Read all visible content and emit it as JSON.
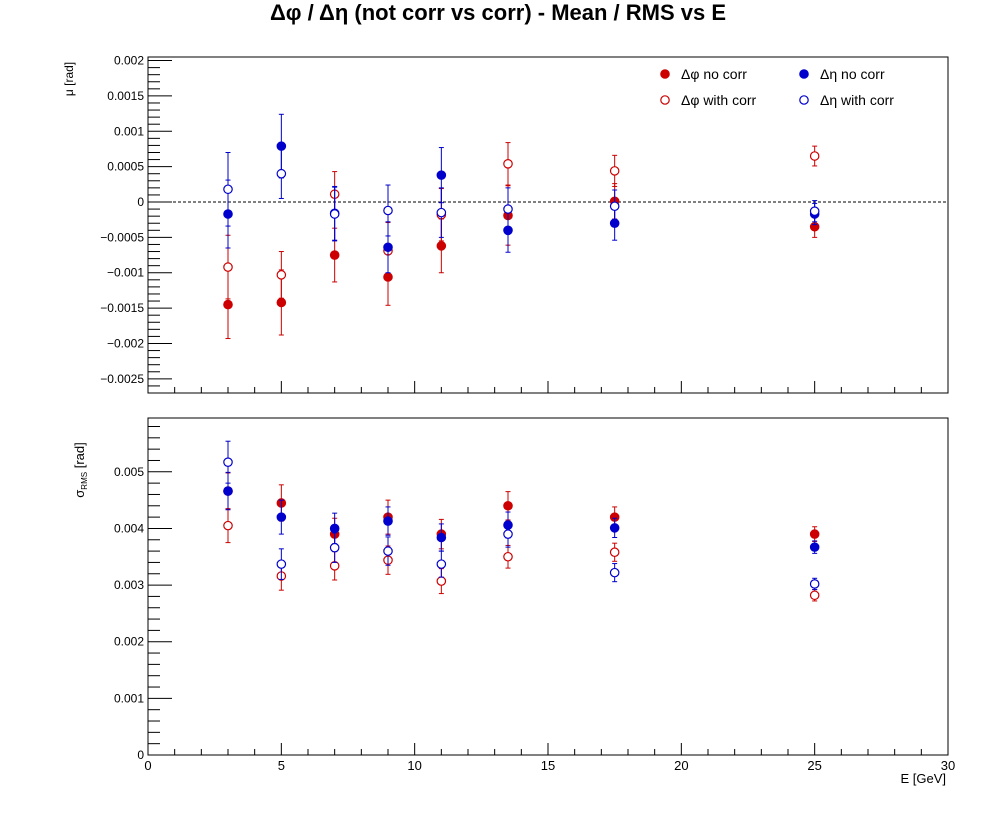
{
  "title": "Δφ / Δη  (not corr vs corr)  -  Mean / RMS vs E",
  "colors": {
    "phi": "#cc0000",
    "eta": "#0000cc",
    "axis": "#000000"
  },
  "legend": {
    "phi_nocorr": "Δφ no corr",
    "eta_nocorr": "Δη no corr",
    "phi_corr": "Δφ with corr",
    "eta_corr": "Δη with corr"
  },
  "chart_data": [
    {
      "type": "scatter",
      "ylabel": "μ  [rad]",
      "ylim": [
        -0.0027,
        0.00205
      ],
      "xlim": [
        0,
        30
      ],
      "yticks": [
        0.002,
        0.0015,
        0.001,
        0.0005,
        0,
        -0.0005,
        -0.001,
        -0.0015,
        -0.002,
        -0.0025
      ],
      "ytick_labels": [
        "0.002",
        "0.0015",
        "0.001",
        "0.0005",
        "0",
        "−0.0005",
        "−0.001",
        "−0.0015",
        "−0.002",
        "−0.0025"
      ],
      "legend_position": "top-right",
      "reference_line": 0,
      "series": [
        {
          "name": "Δφ no corr",
          "style": "filled",
          "color": "#cc0000",
          "x": [
            3,
            5,
            7,
            9,
            11,
            13.5,
            17.5,
            25
          ],
          "y": [
            -0.00145,
            -0.00142,
            -0.00075,
            -0.00106,
            -0.00062,
            -0.00019,
            1e-05,
            -0.00035
          ],
          "err": [
            0.00048,
            0.00046,
            0.00038,
            0.0004,
            0.00038,
            0.00042,
            0.00025,
            0.00015
          ]
        },
        {
          "name": "Δφ with corr",
          "style": "open",
          "color": "#cc0000",
          "x": [
            3,
            5,
            7,
            9,
            11,
            13.5,
            17.5,
            25
          ],
          "y": [
            -0.00092,
            -0.00103,
            0.00011,
            -0.00069,
            -0.00018,
            0.00054,
            0.00044,
            0.00065
          ],
          "err": [
            0.00045,
            0.00033,
            0.00032,
            0.0004,
            0.00037,
            0.0003,
            0.00022,
            0.00014
          ]
        },
        {
          "name": "Δη no corr",
          "style": "filled",
          "color": "#0000cc",
          "x": [
            3,
            5,
            7,
            9,
            11,
            13.5,
            17.5,
            25
          ],
          "y": [
            -0.00017,
            0.00079,
            -0.00016,
            -0.00064,
            0.00038,
            -0.0004,
            -0.0003,
            -0.00017
          ],
          "err": [
            0.00048,
            0.00045,
            0.00038,
            0.00036,
            0.00039,
            0.00031,
            0.00024,
            0.00015
          ]
        },
        {
          "name": "Δη with corr",
          "style": "open",
          "color": "#0000cc",
          "x": [
            3,
            5,
            7,
            9,
            11,
            13.5,
            17.5,
            25
          ],
          "y": [
            0.00018,
            0.0004,
            -0.00017,
            -0.00012,
            -0.00015,
            -0.0001,
            -6e-05,
            -0.00013
          ],
          "err": [
            0.00052,
            0.00035,
            0.00038,
            0.00036,
            0.00035,
            0.0003,
            0.00023,
            0.00015
          ]
        }
      ]
    },
    {
      "type": "scatter",
      "ylabel": "σ",
      "ylabel_sub": "RMS",
      "ylabel_unit": "[rad]",
      "xlabel": "E  [GeV]",
      "ylim": [
        0,
        0.00595
      ],
      "xlim": [
        0,
        30
      ],
      "xticks": [
        0,
        5,
        10,
        15,
        20,
        25,
        30
      ],
      "xtick_labels": [
        "0",
        "5",
        "10",
        "15",
        "20",
        "25",
        "30"
      ],
      "yticks": [
        0,
        0.001,
        0.002,
        0.003,
        0.004,
        0.005
      ],
      "ytick_labels": [
        "0",
        "0.001",
        "0.002",
        "0.003",
        "0.004",
        "0.005"
      ],
      "series": [
        {
          "name": "Δφ no corr",
          "style": "filled",
          "color": "#cc0000",
          "x": [
            3,
            5,
            7,
            9,
            11,
            13.5,
            17.5,
            25
          ],
          "y": [
            0.00466,
            0.00445,
            0.0039,
            0.0042,
            0.0039,
            0.0044,
            0.0042,
            0.0039
          ],
          "err": [
            0.00032,
            0.00032,
            0.00028,
            0.0003,
            0.00026,
            0.00025,
            0.00018,
            0.00013
          ]
        },
        {
          "name": "Δφ with corr",
          "style": "open",
          "color": "#cc0000",
          "x": [
            3,
            5,
            7,
            9,
            11,
            13.5,
            17.5,
            25
          ],
          "y": [
            0.00405,
            0.00316,
            0.00334,
            0.00344,
            0.00307,
            0.0035,
            0.00358,
            0.00282
          ],
          "err": [
            0.0003,
            0.00025,
            0.00025,
            0.00025,
            0.00022,
            0.0002,
            0.00016,
            0.0001
          ]
        },
        {
          "name": "Δη no corr",
          "style": "filled",
          "color": "#0000cc",
          "x": [
            3,
            5,
            7,
            9,
            11,
            13.5,
            17.5,
            25
          ],
          "y": [
            0.00466,
            0.0042,
            0.004,
            0.00413,
            0.00384,
            0.00406,
            0.00401,
            0.00367
          ],
          "err": [
            0.00033,
            0.0003,
            0.00027,
            0.00025,
            0.00024,
            0.00023,
            0.00017,
            0.00011
          ]
        },
        {
          "name": "Δη with corr",
          "style": "open",
          "color": "#0000cc",
          "x": [
            3,
            5,
            7,
            9,
            11,
            13.5,
            17.5,
            25
          ],
          "y": [
            0.00517,
            0.00337,
            0.00366,
            0.0036,
            0.00337,
            0.0039,
            0.00322,
            0.00302
          ],
          "err": [
            0.00037,
            0.00027,
            0.00026,
            0.00025,
            0.00023,
            0.00023,
            0.00016,
            0.0001
          ]
        }
      ]
    }
  ]
}
